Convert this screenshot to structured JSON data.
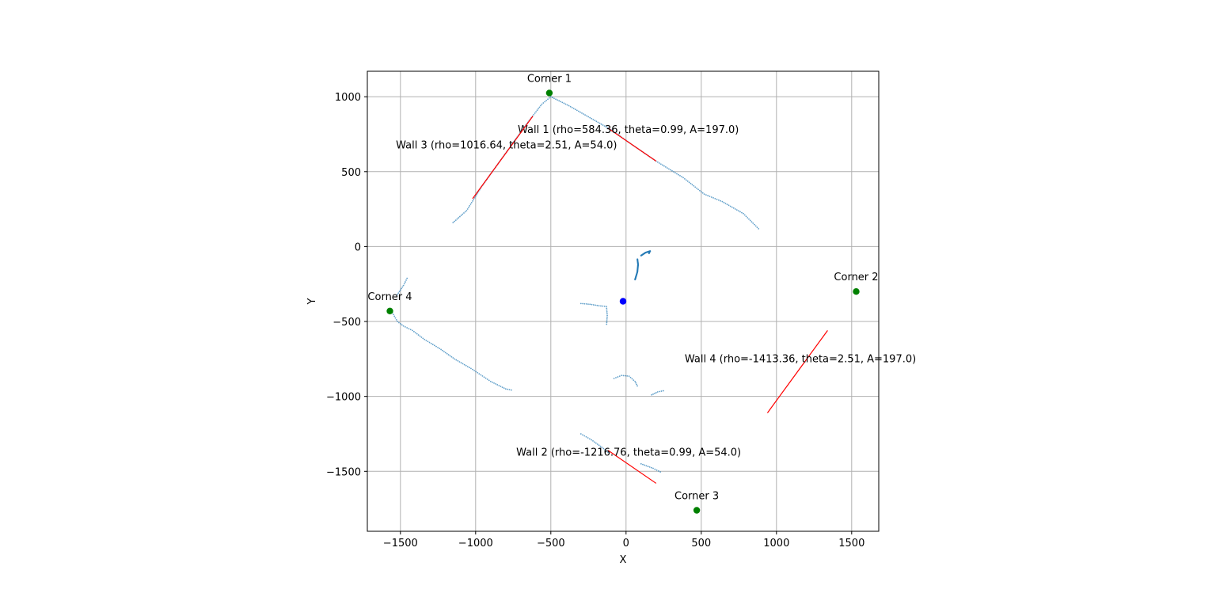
{
  "chart_data": {
    "type": "scatter",
    "title": "",
    "xlabel": "X",
    "ylabel": "Y",
    "xlim": [
      -1720,
      1680
    ],
    "ylim": [
      -1900,
      1170
    ],
    "grid": true,
    "legend": "none",
    "xticks": [
      -1500,
      -1000,
      -500,
      0,
      500,
      1000,
      1500
    ],
    "yticks": [
      -1500,
      -1000,
      -500,
      0,
      500,
      1000
    ],
    "colors": {
      "points": "#1f77b4",
      "walls": "#ff0000",
      "corners": "#008000",
      "robot": "#0000ff",
      "grid": "#b0b0b0"
    },
    "point_paths": [
      [
        [
          -1150,
          160
        ],
        [
          -1060,
          240
        ],
        [
          -960,
          400
        ],
        [
          -860,
          540
        ],
        [
          -760,
          680
        ],
        [
          -660,
          820
        ],
        [
          -560,
          950
        ],
        [
          -500,
          1000
        ]
      ],
      [
        [
          -500,
          1000
        ],
        [
          -380,
          940
        ],
        [
          -240,
          860
        ],
        [
          -100,
          780
        ],
        [
          40,
          680
        ],
        [
          200,
          570
        ],
        [
          380,
          460
        ],
        [
          520,
          350
        ],
        [
          640,
          300
        ],
        [
          780,
          220
        ],
        [
          890,
          110
        ]
      ],
      [
        [
          -1560,
          -430
        ],
        [
          -1520,
          -500
        ],
        [
          -1480,
          -530
        ],
        [
          -1420,
          -560
        ],
        [
          -1340,
          -620
        ],
        [
          -1240,
          -680
        ],
        [
          -1140,
          -750
        ],
        [
          -1020,
          -820
        ],
        [
          -900,
          -900
        ],
        [
          -800,
          -950
        ],
        [
          -750,
          -960
        ]
      ],
      [
        [
          -1520,
          -320
        ],
        [
          -1480,
          -260
        ],
        [
          -1450,
          -200
        ]
      ],
      [
        [
          -300,
          -380
        ],
        [
          -240,
          -385
        ],
        [
          -180,
          -395
        ],
        [
          -130,
          -400
        ],
        [
          -125,
          -460
        ],
        [
          -130,
          -530
        ]
      ],
      [
        [
          -80,
          -880
        ],
        [
          -30,
          -860
        ],
        [
          20,
          -865
        ],
        [
          60,
          -900
        ],
        [
          80,
          -940
        ]
      ],
      [
        [
          170,
          -990
        ],
        [
          210,
          -970
        ],
        [
          260,
          -960
        ]
      ],
      [
        [
          -300,
          -1250
        ],
        [
          -230,
          -1290
        ],
        [
          -160,
          -1340
        ],
        [
          -110,
          -1380
        ]
      ],
      [
        [
          100,
          -1450
        ],
        [
          180,
          -1480
        ],
        [
          240,
          -1510
        ]
      ]
    ],
    "dense_paths": [
      [
        [
          60,
          -220
        ],
        [
          75,
          -170
        ],
        [
          80,
          -120
        ],
        [
          75,
          -80
        ]
      ],
      [
        [
          100,
          -60
        ],
        [
          130,
          -40
        ],
        [
          160,
          -30
        ],
        [
          150,
          -50
        ]
      ]
    ],
    "robot": [
      -20,
      -365
    ],
    "walls": [
      {
        "label": "Wall 1 (rho=584.36, theta=0.99, A=197.0)",
        "from": [
          -120,
          790
        ],
        "to": [
          200,
          570
        ],
        "text_at": [
          -720,
          783
        ]
      },
      {
        "label": "Wall 2 (rho=-1216.76, theta=0.99, A=54.0)",
        "from": [
          -120,
          -1360
        ],
        "to": [
          200,
          -1580
        ],
        "text_at": [
          -730,
          -1368
        ]
      },
      {
        "label": "Wall 3 (rho=1016.64, theta=2.51, A=54.0)",
        "from": [
          -1020,
          320
        ],
        "to": [
          -620,
          870
        ],
        "text_at": [
          -1530,
          682
        ]
      },
      {
        "label": "Wall 4 (rho=-1413.36, theta=2.51, A=197.0)",
        "from": [
          940,
          -1110
        ],
        "to": [
          1340,
          -560
        ],
        "text_at": [
          390,
          -745
        ]
      }
    ],
    "corners": [
      {
        "label": "Corner 1",
        "x": -510,
        "y": 1025
      },
      {
        "label": "Corner 2",
        "x": 1530,
        "y": -300
      },
      {
        "label": "Corner 3",
        "x": 470,
        "y": -1760
      },
      {
        "label": "Corner 4",
        "x": -1570,
        "y": -430
      }
    ]
  }
}
